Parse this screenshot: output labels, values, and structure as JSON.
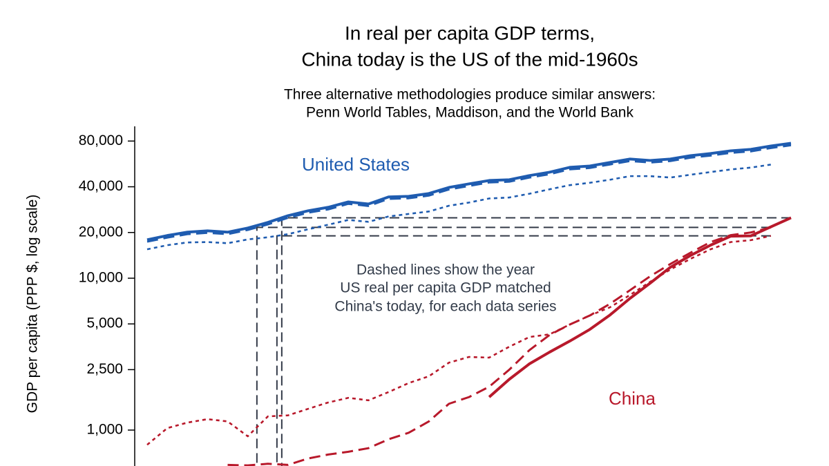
{
  "chart_data": {
    "type": "line",
    "title": [
      "In real per capita GDP terms,",
      "China today is the US of the mid-1960s"
    ],
    "subtitle": [
      "Three alternative methodologies produce similar answers:",
      "Penn World Tables, Maddison, and the World Bank"
    ],
    "y_label": "GDP per capita (PPP $, log scale)",
    "annotation": [
      "Dashed lines show the year",
      "US real per capita GDP matched",
      "China's today, for each data series"
    ],
    "log_scale": true,
    "ylim": [
      580,
      100000
    ],
    "yticks": [
      {
        "value": 1000,
        "label": "1,000"
      },
      {
        "value": 2500,
        "label": "2,500"
      },
      {
        "value": 5000,
        "label": "5,000"
      },
      {
        "value": 10000,
        "label": "10,000"
      },
      {
        "value": 20000,
        "label": "20,000"
      },
      {
        "value": 40000,
        "label": "40,000"
      },
      {
        "value": 80000,
        "label": "80,000"
      }
    ],
    "categories": [
      null,
      null,
      null,
      null,
      null,
      null,
      null,
      null,
      null,
      null,
      null,
      null,
      null,
      null,
      null,
      null,
      null,
      null,
      null,
      null,
      null,
      null,
      null,
      null,
      null,
      null,
      null,
      null,
      null,
      null,
      null,
      null,
      null
    ],
    "series": [
      {
        "name": "United States",
        "color": "#1f5cb0",
        "style": "solid",
        "values": [
          17900,
          19100,
          20100,
          20500,
          20100,
          21400,
          23300,
          25800,
          27800,
          29300,
          31800,
          30800,
          34300,
          34600,
          36100,
          39600,
          41800,
          44000,
          44500,
          47400,
          49900,
          53700,
          54800,
          57800,
          60900,
          59600,
          60900,
          64100,
          66200,
          69000,
          70500,
          74200,
          77400
        ]
      },
      {
        "color": "#1f5cb0",
        "style": "dashed",
        "values": [
          17400,
          18500,
          19500,
          19900,
          19500,
          20800,
          22600,
          25000,
          27000,
          28400,
          30900,
          29900,
          33300,
          33600,
          35000,
          38400,
          40500,
          42700,
          43200,
          46000,
          48400,
          52100,
          53200,
          56100,
          59100,
          57800,
          59100,
          62200,
          64200,
          66900,
          68400,
          72000,
          75100
        ]
      },
      {
        "color": "#1f5cb0",
        "style": "dotted",
        "values": [
          15500,
          16500,
          17200,
          17300,
          17000,
          18000,
          18600,
          19500,
          21000,
          22500,
          24200,
          23500,
          25500,
          26500,
          27500,
          30000,
          31500,
          33500,
          34000,
          36000,
          38500,
          41000,
          42500,
          44500,
          47000,
          47000,
          46000,
          48000,
          50000,
          52000,
          53500,
          56000,
          null
        ]
      },
      {
        "name": "China",
        "color": "#b8192b",
        "style": "solid",
        "values": [
          null,
          null,
          null,
          null,
          null,
          null,
          null,
          null,
          null,
          null,
          null,
          null,
          null,
          null,
          null,
          null,
          null,
          1650,
          2160,
          2730,
          3260,
          3850,
          4600,
          5720,
          7370,
          9280,
          11800,
          14100,
          16500,
          18900,
          19000,
          21800,
          25000
        ]
      },
      {
        "color": "#b8192b",
        "style": "dashed",
        "values": [
          null,
          null,
          null,
          null,
          590,
          585,
          600,
          590,
          650,
          690,
          720,
          760,
          870,
          960,
          1140,
          1490,
          1650,
          1930,
          2500,
          3360,
          4230,
          4950,
          5680,
          6770,
          8340,
          10300,
          12400,
          14700,
          17300,
          19200,
          20000,
          21600,
          null
        ]
      },
      {
        "color": "#b8192b",
        "style": "dotted",
        "values": [
          800,
          1030,
          1120,
          1180,
          1140,
          910,
          1230,
          1250,
          1380,
          1520,
          1630,
          1570,
          1780,
          2040,
          2260,
          2780,
          3030,
          3000,
          3540,
          4100,
          4270,
          4950,
          5680,
          6430,
          7760,
          9470,
          11400,
          13400,
          15500,
          17300,
          17800,
          19000,
          null
        ]
      }
    ]
  }
}
